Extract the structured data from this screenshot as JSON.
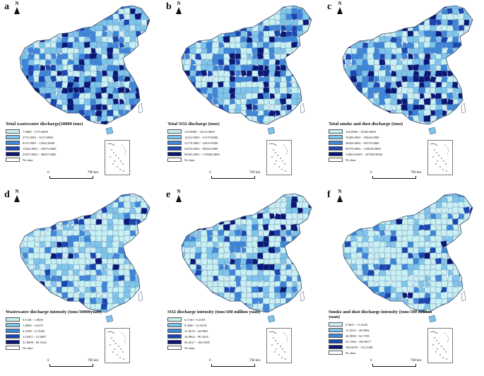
{
  "north_label": "N",
  "scale": {
    "zero": "0",
    "distance": "700 km"
  },
  "colors": [
    "#c9f0f3",
    "#7fc4ea",
    "#3f86d8",
    "#1b45b0",
    "#0a1775",
    "#ffffff"
  ],
  "panels": [
    {
      "letter": "a",
      "legend_title": "Total wastewater discharge(10000 tons)",
      "legend_items": [
        "7.0000 - 2715.0000",
        "2715.0001 - 6137.0000",
        "6137.0001 - 13022.0000",
        "13022.0001 - 25875.0000",
        "25875.0001 - 48457.0000",
        "No data"
      ]
    },
    {
      "letter": "b",
      "legend_title": "Total SO2 discharge (tons)",
      "legend_items": [
        "219.0000 - 14212.0000",
        "14212.0001 - 31179.0000",
        "31179.0001 - 54519.0000",
        "54519.0001 - 90292.0000",
        "90292.0001 - 174046.0000",
        "No data"
      ]
    },
    {
      "letter": "c",
      "legend_title": "Total smoke and dust discharge (tons)",
      "legend_items": [
        "156.0000 - 16456.0000",
        "16456.0001 - 38426.0000",
        "38426.0001 - 65579.0000",
        "65579.0001 - 128618.0000",
        "128618.0001 - 447928.0000",
        "No data"
      ]
    },
    {
      "letter": "d",
      "legend_title": "Wastewater discharge intensity  (tons/10000yuan)",
      "legend_items": [
        "0.1138 - 1.8839",
        "1.8839 - 4.4197",
        "4.4198 - 11.8356",
        "11.8357 - 21.8697",
        "21.8698 - 69.5524",
        "No data"
      ]
    },
    {
      "letter": "e",
      "legend_title": "SO2 discharge intensity  (tons/100 million yuan)",
      "legend_items": [
        "0.1740 - 9.3359",
        "9.3600 - 21.8218",
        "21.8219 - 44.0961",
        "44.0962 - 90.2616",
        "90.2617 - 184.5995",
        "No data"
      ]
    },
    {
      "letter": "f",
      "legend_title": "Smoke and dust discharge intensity (tons/100 million yuan)",
      "legend_items": [
        "0.0637 - 11.0232",
        "11.0233 - 26.9994",
        "26.9995 - 52.7559",
        "52.7560 - 100.9677",
        "100.9678 - 153.2348",
        "No data"
      ]
    }
  ]
}
